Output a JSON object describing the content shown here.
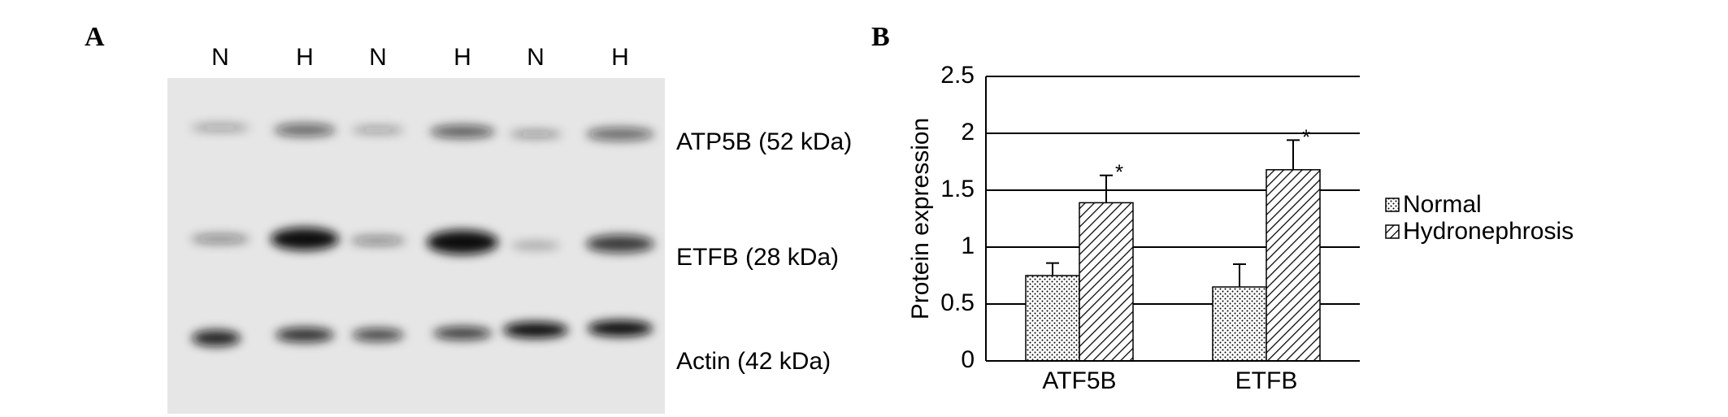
{
  "panel_a": {
    "label": "A",
    "lanes": [
      "N",
      "H",
      "N",
      "H",
      "N",
      "H"
    ],
    "bands": [
      "ATP5B (52 kDa)",
      "ETFB (28 kDa)",
      "Actin (42 kDa)"
    ]
  },
  "panel_b": {
    "label": "B"
  },
  "chart_data": {
    "type": "bar",
    "y_label": "Protein expression",
    "categories": [
      "ATF5B",
      "ETFB"
    ],
    "series": [
      {
        "name": "Normal",
        "color": "#000000",
        "pattern": "dots",
        "values": [
          0.75,
          0.65
        ],
        "errors": [
          0.11,
          0.2
        ]
      },
      {
        "name": "Hydronephrosis",
        "color": "#000000",
        "pattern": "hatch",
        "values": [
          1.39,
          1.68
        ],
        "errors": [
          0.24,
          0.26
        ],
        "annotations": [
          "*",
          "*"
        ]
      }
    ],
    "ylim": [
      0,
      2.5
    ],
    "yticks": [
      0,
      0.5,
      1,
      1.5,
      2,
      2.5
    ],
    "grid": true,
    "legend": "right"
  }
}
